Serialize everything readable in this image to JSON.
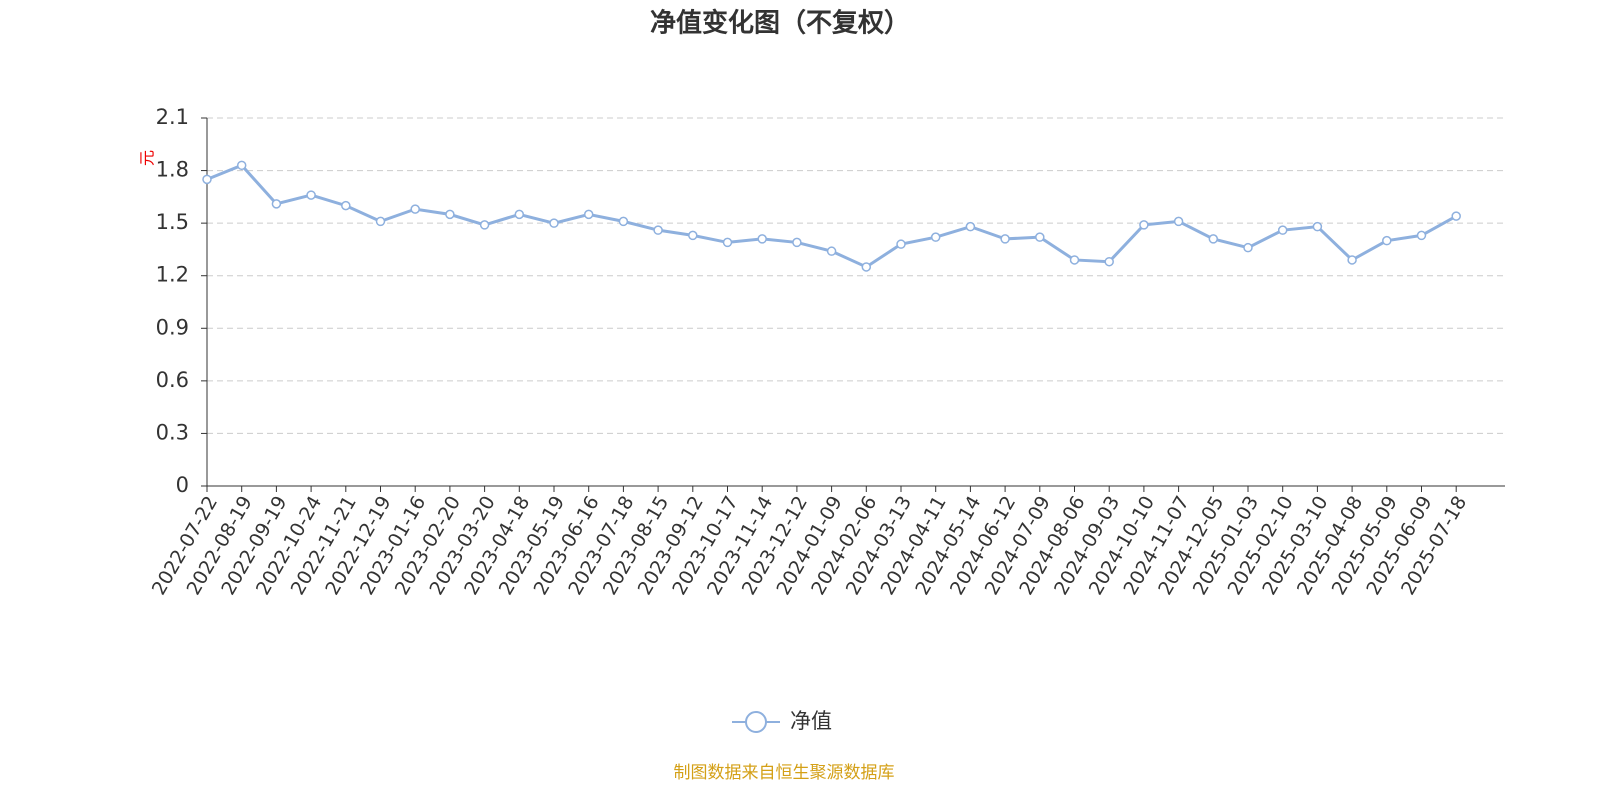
{
  "chart_data": {
    "type": "line",
    "title": "净值变化图（不复权）",
    "y_axis_label": "元",
    "categories": [
      "2022-07-22",
      "2022-08-19",
      "2022-09-19",
      "2022-10-24",
      "2022-11-21",
      "2022-12-19",
      "2023-01-16",
      "2023-02-20",
      "2023-03-20",
      "2023-04-18",
      "2023-05-19",
      "2023-06-16",
      "2023-07-18",
      "2023-08-15",
      "2023-09-12",
      "2023-10-17",
      "2023-11-14",
      "2023-12-12",
      "2024-01-09",
      "2024-02-06",
      "2024-03-13",
      "2024-04-11",
      "2024-05-14",
      "2024-06-12",
      "2024-07-09",
      "2024-08-06",
      "2024-09-03",
      "2024-10-10",
      "2024-11-07",
      "2024-12-05",
      "2025-01-03",
      "2025-02-10",
      "2025-03-10",
      "2025-04-08",
      "2025-05-09",
      "2025-06-09",
      "2025-07-18"
    ],
    "series": [
      {
        "name": "净值",
        "color": "#8eb0de",
        "values": [
          1.75,
          1.83,
          1.61,
          1.66,
          1.6,
          1.51,
          1.58,
          1.55,
          1.49,
          1.55,
          1.5,
          1.55,
          1.51,
          1.46,
          1.43,
          1.39,
          1.41,
          1.39,
          1.34,
          1.25,
          1.38,
          1.42,
          1.48,
          1.41,
          1.42,
          1.29,
          1.28,
          1.49,
          1.51,
          1.41,
          1.36,
          1.46,
          1.48,
          1.29,
          1.4,
          1.43,
          1.54
        ]
      }
    ],
    "ylim": [
      0,
      2.1
    ],
    "yticks": [
      0,
      0.3,
      0.6,
      0.9,
      1.2,
      1.5,
      1.8,
      2.1
    ],
    "grid": true,
    "legend": "bottom",
    "source": "制图数据来自恒生聚源数据库"
  }
}
